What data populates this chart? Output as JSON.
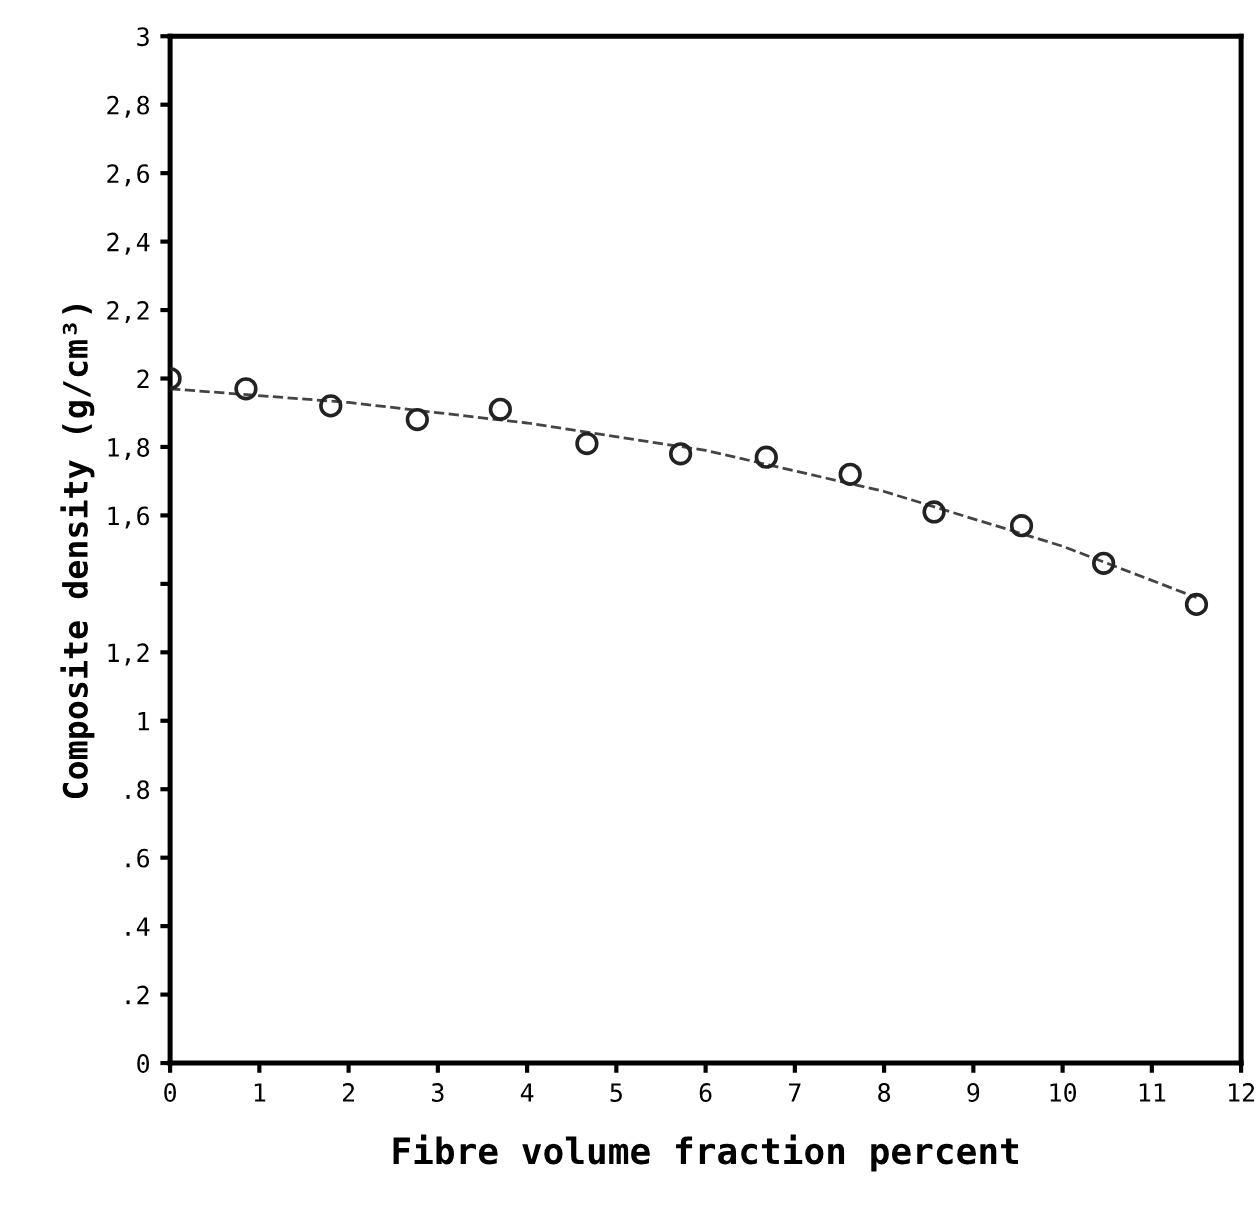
{
  "chart_data": {
    "type": "scatter",
    "xlabel": "Fibre volume fraction percent",
    "ylabel": "Composite density (g/cm³)",
    "xlim": [
      0,
      12
    ],
    "xticks": [
      0,
      1,
      2,
      3,
      4,
      5,
      6,
      7,
      8,
      9,
      10,
      11,
      12
    ],
    "ylim": [
      0,
      3
    ],
    "yticks": [
      {
        "value": 0,
        "label": "0"
      },
      {
        "value": 0.2,
        "label": ".2"
      },
      {
        "value": 0.4,
        "label": ".4"
      },
      {
        "value": 0.6,
        "label": ".6"
      },
      {
        "value": 0.8,
        "label": ".8"
      },
      {
        "value": 1,
        "label": "1"
      },
      {
        "value": 1.2,
        "label": "1,2"
      },
      {
        "value": 1.4,
        "label": null
      },
      {
        "value": 1.6,
        "label": "1,6"
      },
      {
        "value": 1.8,
        "label": "1,8"
      },
      {
        "value": 2,
        "label": "2"
      },
      {
        "value": 2.2,
        "label": "2,2"
      },
      {
        "value": 2.4,
        "label": "2,4"
      },
      {
        "value": 2.6,
        "label": "2,6"
      },
      {
        "value": 2.8,
        "label": "2,8"
      },
      {
        "value": 3,
        "label": "3"
      }
    ],
    "grid": false,
    "series": [
      {
        "color": "#222222",
        "marker": "circle",
        "x": [
          0,
          0.85,
          1.8,
          2.77,
          3.7,
          4.67,
          5.72,
          6.68,
          7.62,
          8.56,
          9.54,
          10.46,
          11.5
        ],
        "values": [
          2.0,
          1.97,
          1.92,
          1.88,
          1.91,
          1.81,
          1.78,
          1.77,
          1.72,
          1.61,
          1.57,
          1.46,
          1.34
        ]
      },
      {
        "type": "line",
        "color": "#444444",
        "line_style": "dashed",
        "marker": "none",
        "x": [
          0,
          2,
          4,
          6,
          8,
          10,
          11.5
        ],
        "values": [
          1.97,
          1.93,
          1.87,
          1.79,
          1.67,
          1.51,
          1.36
        ]
      }
    ]
  }
}
